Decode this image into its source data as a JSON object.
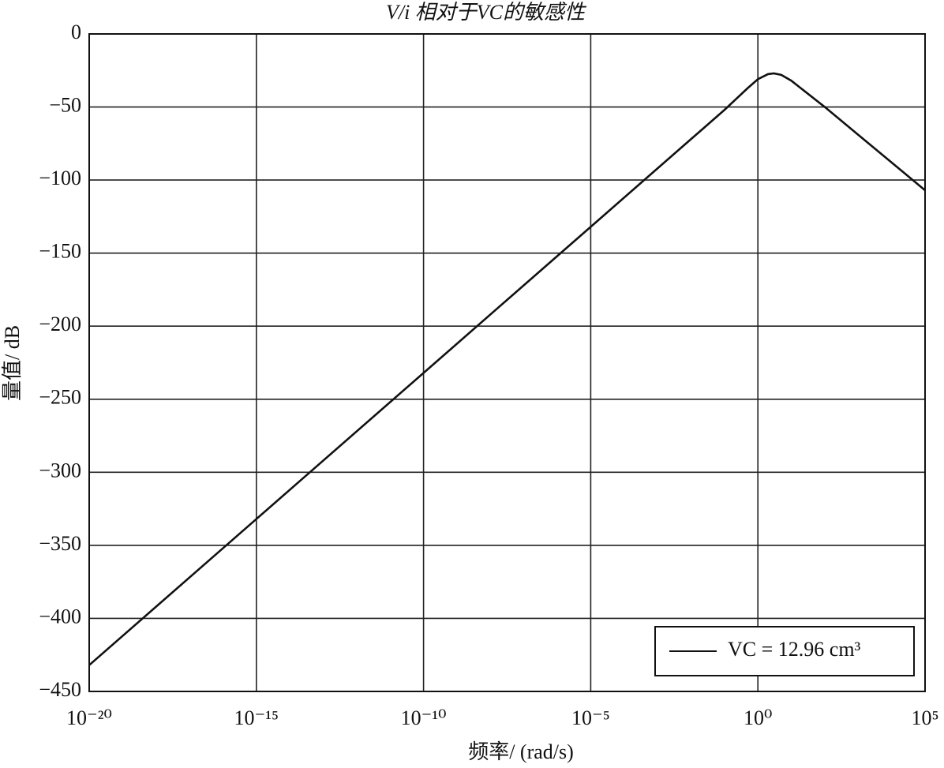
{
  "chart_data": {
    "type": "line",
    "title": "V/i 相对于VC的敏感性",
    "x_label": "频率/ (rad/s)",
    "y_label": "量值/ dB",
    "x": [
      1e-20,
      1e-15,
      1e-10,
      1e-05,
      0.01,
      0.1,
      0.5,
      1,
      2,
      3,
      5,
      10,
      100,
      1000,
      10000,
      100000
    ],
    "series": [
      {
        "name": "VC = 12.96 cm³",
        "color": "#111111",
        "values": [
          -432,
          -332,
          -232,
          -132,
          -72,
          -52,
          -37,
          -31,
          -27.5,
          -27,
          -28,
          -32,
          -50,
          -69,
          -88,
          -107
        ]
      }
    ],
    "xscale": "log",
    "xlim": [
      1e-20,
      100000
    ],
    "xticks": [
      {
        "value": 1e-20,
        "label": "10⁻²⁰"
      },
      {
        "value": 1e-15,
        "label": "10⁻¹⁵"
      },
      {
        "value": 1e-10,
        "label": "10⁻¹⁰"
      },
      {
        "value": 1e-05,
        "label": "10⁻⁵"
      },
      {
        "value": 1,
        "label": "10⁰"
      },
      {
        "value": 100000,
        "label": "10⁵"
      }
    ],
    "ylim": [
      -450,
      0
    ],
    "yticks": [
      {
        "value": -450,
        "label": "−450"
      },
      {
        "value": -400,
        "label": "−400"
      },
      {
        "value": -350,
        "label": "−350"
      },
      {
        "value": -300,
        "label": "−300"
      },
      {
        "value": -250,
        "label": "−250"
      },
      {
        "value": -200,
        "label": "−200"
      },
      {
        "value": -150,
        "label": "−150"
      },
      {
        "value": -100,
        "label": "−100"
      },
      {
        "value": -50,
        "label": "−50"
      },
      0
    ],
    "grid": true,
    "legend": "lower right"
  }
}
